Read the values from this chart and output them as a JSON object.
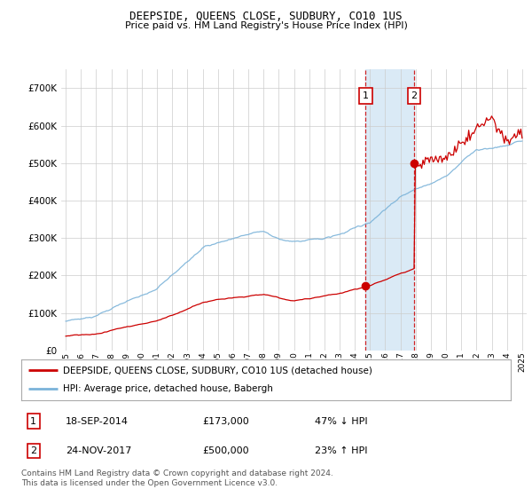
{
  "title": "DEEPSIDE, QUEENS CLOSE, SUDBURY, CO10 1US",
  "subtitle": "Price paid vs. HM Land Registry's House Price Index (HPI)",
  "footer": "Contains HM Land Registry data © Crown copyright and database right 2024.\nThis data is licensed under the Open Government Licence v3.0.",
  "legend_line1": "DEEPSIDE, QUEENS CLOSE, SUDBURY, CO10 1US (detached house)",
  "legend_line2": "HPI: Average price, detached house, Babergh",
  "table_rows": [
    {
      "num": "1",
      "date": "18-SEP-2014",
      "price": "£173,000",
      "change": "47% ↓ HPI"
    },
    {
      "num": "2",
      "date": "24-NOV-2017",
      "price": "£500,000",
      "change": "23% ↑ HPI"
    }
  ],
  "sale1_year": 2014.72,
  "sale1_price": 173000,
  "sale2_year": 2017.9,
  "sale2_price": 500000,
  "hpi_color": "#7bb3d9",
  "price_color": "#cc0000",
  "shade_color": "#daeaf6",
  "background_color": "#ffffff",
  "grid_color": "#cccccc",
  "ylim": [
    0,
    750000
  ],
  "yticks": [
    0,
    100000,
    200000,
    300000,
    400000,
    500000,
    600000,
    700000
  ],
  "xmin": 1995,
  "xmax": 2025
}
